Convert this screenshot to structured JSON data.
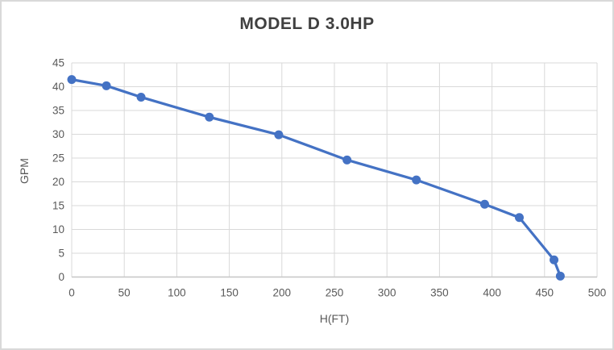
{
  "title": "MODEL D 3.0HP",
  "colors": {
    "series_line": "#4472C4",
    "marker_fill": "#4472C4",
    "title_text": "#404040",
    "axis_text": "#595959",
    "gridline": "#D9D9D9",
    "axis_line": "#C6C6C6",
    "canvas_border": "#D9D9D9",
    "background": "#FFFFFF"
  },
  "chart_data": {
    "type": "line",
    "title": "MODEL D 3.0HP",
    "xlabel": "H(FT)",
    "ylabel": "GPM",
    "x": [
      0,
      33,
      66,
      131,
      197,
      262,
      328,
      393,
      426,
      459,
      465
    ],
    "y": [
      41.5,
      40.2,
      37.8,
      33.6,
      29.9,
      24.6,
      20.4,
      15.3,
      12.5,
      3.6,
      0.2
    ],
    "xlim": [
      0,
      500
    ],
    "ylim": [
      0,
      45
    ],
    "x_ticks": [
      0,
      50,
      100,
      150,
      200,
      250,
      300,
      350,
      400,
      450,
      500
    ],
    "y_ticks": [
      0,
      5,
      10,
      15,
      20,
      25,
      30,
      35,
      40,
      45
    ],
    "grid": true,
    "legend": false,
    "marker": "circle",
    "line_width": 3.25,
    "marker_radius": 5.5
  }
}
